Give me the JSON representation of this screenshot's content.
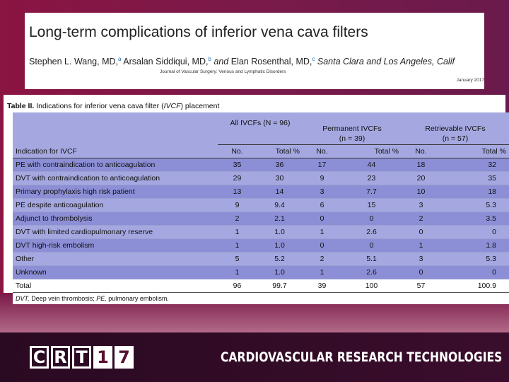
{
  "header": {
    "title": "Long-term complications of inferior vena cava filters",
    "authors": [
      {
        "name": "Stephen L. Wang, MD,",
        "sup": "a"
      },
      {
        "name": "Arsalan Siddiqui, MD,",
        "sup": "b"
      },
      {
        "name": "Elan Rosenthal, MD,",
        "sup": "c"
      }
    ],
    "and_text": "and",
    "location": "Santa Clara and Los Angeles, Calif",
    "journal": "Journal of Vascular Surgery: Venous and Lymphatic Disorders",
    "date": "January 2017"
  },
  "table": {
    "caption_bold": "Table II.",
    "caption_pre": "Indications for inferior vena cava filter (",
    "caption_abbr": "IVCF",
    "caption_post": ") placement",
    "groups": [
      {
        "line1": "All IVCFs (N = 96)",
        "line2": ""
      },
      {
        "line1": "Permanent IVCFs",
        "line2": "(n = 39)"
      },
      {
        "line1": "Retrievable IVCFs",
        "line2": "(n = 57)"
      }
    ],
    "headers": [
      "Indication for IVCF",
      "No.",
      "Total %",
      "No.",
      "Total %",
      "No.",
      "Total %"
    ],
    "rows": [
      [
        "PE with contraindication to anticoagulation",
        "35",
        "36",
        "17",
        "44",
        "18",
        "32"
      ],
      [
        "DVT with contraindication to anticoagulation",
        "29",
        "30",
        "9",
        "23",
        "20",
        "35"
      ],
      [
        "Primary prophylaxis high risk patient",
        "13",
        "14",
        "3",
        "7.7",
        "10",
        "18"
      ],
      [
        "PE despite anticoagulation",
        "9",
        "9.4",
        "6",
        "15",
        "3",
        "5.3"
      ],
      [
        "Adjunct to thrombolysis",
        "2",
        "2.1",
        "0",
        "0",
        "2",
        "3.5"
      ],
      [
        "DVT with limited cardiopulmonary reserve",
        "1",
        "1.0",
        "1",
        "2.6",
        "0",
        "0"
      ],
      [
        "DVT high-risk embolism",
        "1",
        "1.0",
        "0",
        "0",
        "1",
        "1.8"
      ],
      [
        "Other",
        "5",
        "5.2",
        "2",
        "5.1",
        "3",
        "5.3"
      ],
      [
        "Unknown",
        "1",
        "1.0",
        "1",
        "2.6",
        "0",
        "0"
      ]
    ],
    "total": [
      "Total",
      "96",
      "99.7",
      "39",
      "100",
      "57",
      "100.9"
    ],
    "footnote": {
      "abbr1": "DVT,",
      "def1": "Deep vein thrombosis;",
      "abbr2": "PE,",
      "def2": "pulmonary embolism."
    }
  },
  "footer": {
    "logo_letters": [
      "C",
      "R",
      "T",
      "1",
      "7"
    ],
    "brand": "CARDIOVASCULAR RESEARCH TECHNOLOGIES"
  }
}
